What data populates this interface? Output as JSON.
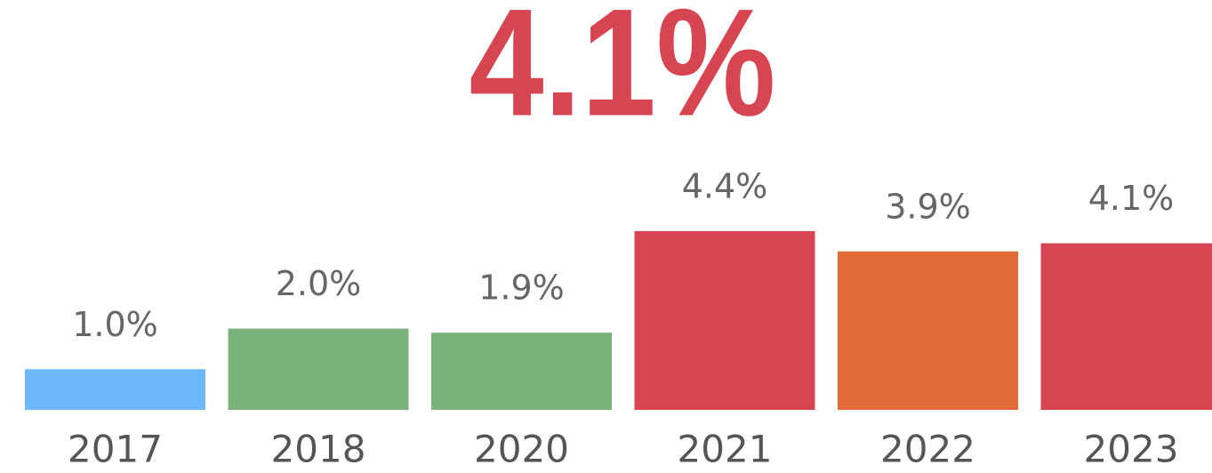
{
  "chart_data": {
    "type": "bar",
    "title": "4.1%",
    "categories": [
      "2017",
      "2018",
      "2020",
      "2021",
      "2022",
      "2023"
    ],
    "values": [
      1.0,
      2.0,
      1.9,
      4.4,
      3.9,
      4.1
    ],
    "value_labels": [
      "1.0%",
      "2.0%",
      "1.9%",
      "4.4%",
      "3.9%",
      "4.1%"
    ],
    "colors": [
      "#6cb8fb",
      "#7ab37b",
      "#7ab37b",
      "#d84552",
      "#e46c38",
      "#d84552"
    ],
    "title_color": "#d84552"
  }
}
